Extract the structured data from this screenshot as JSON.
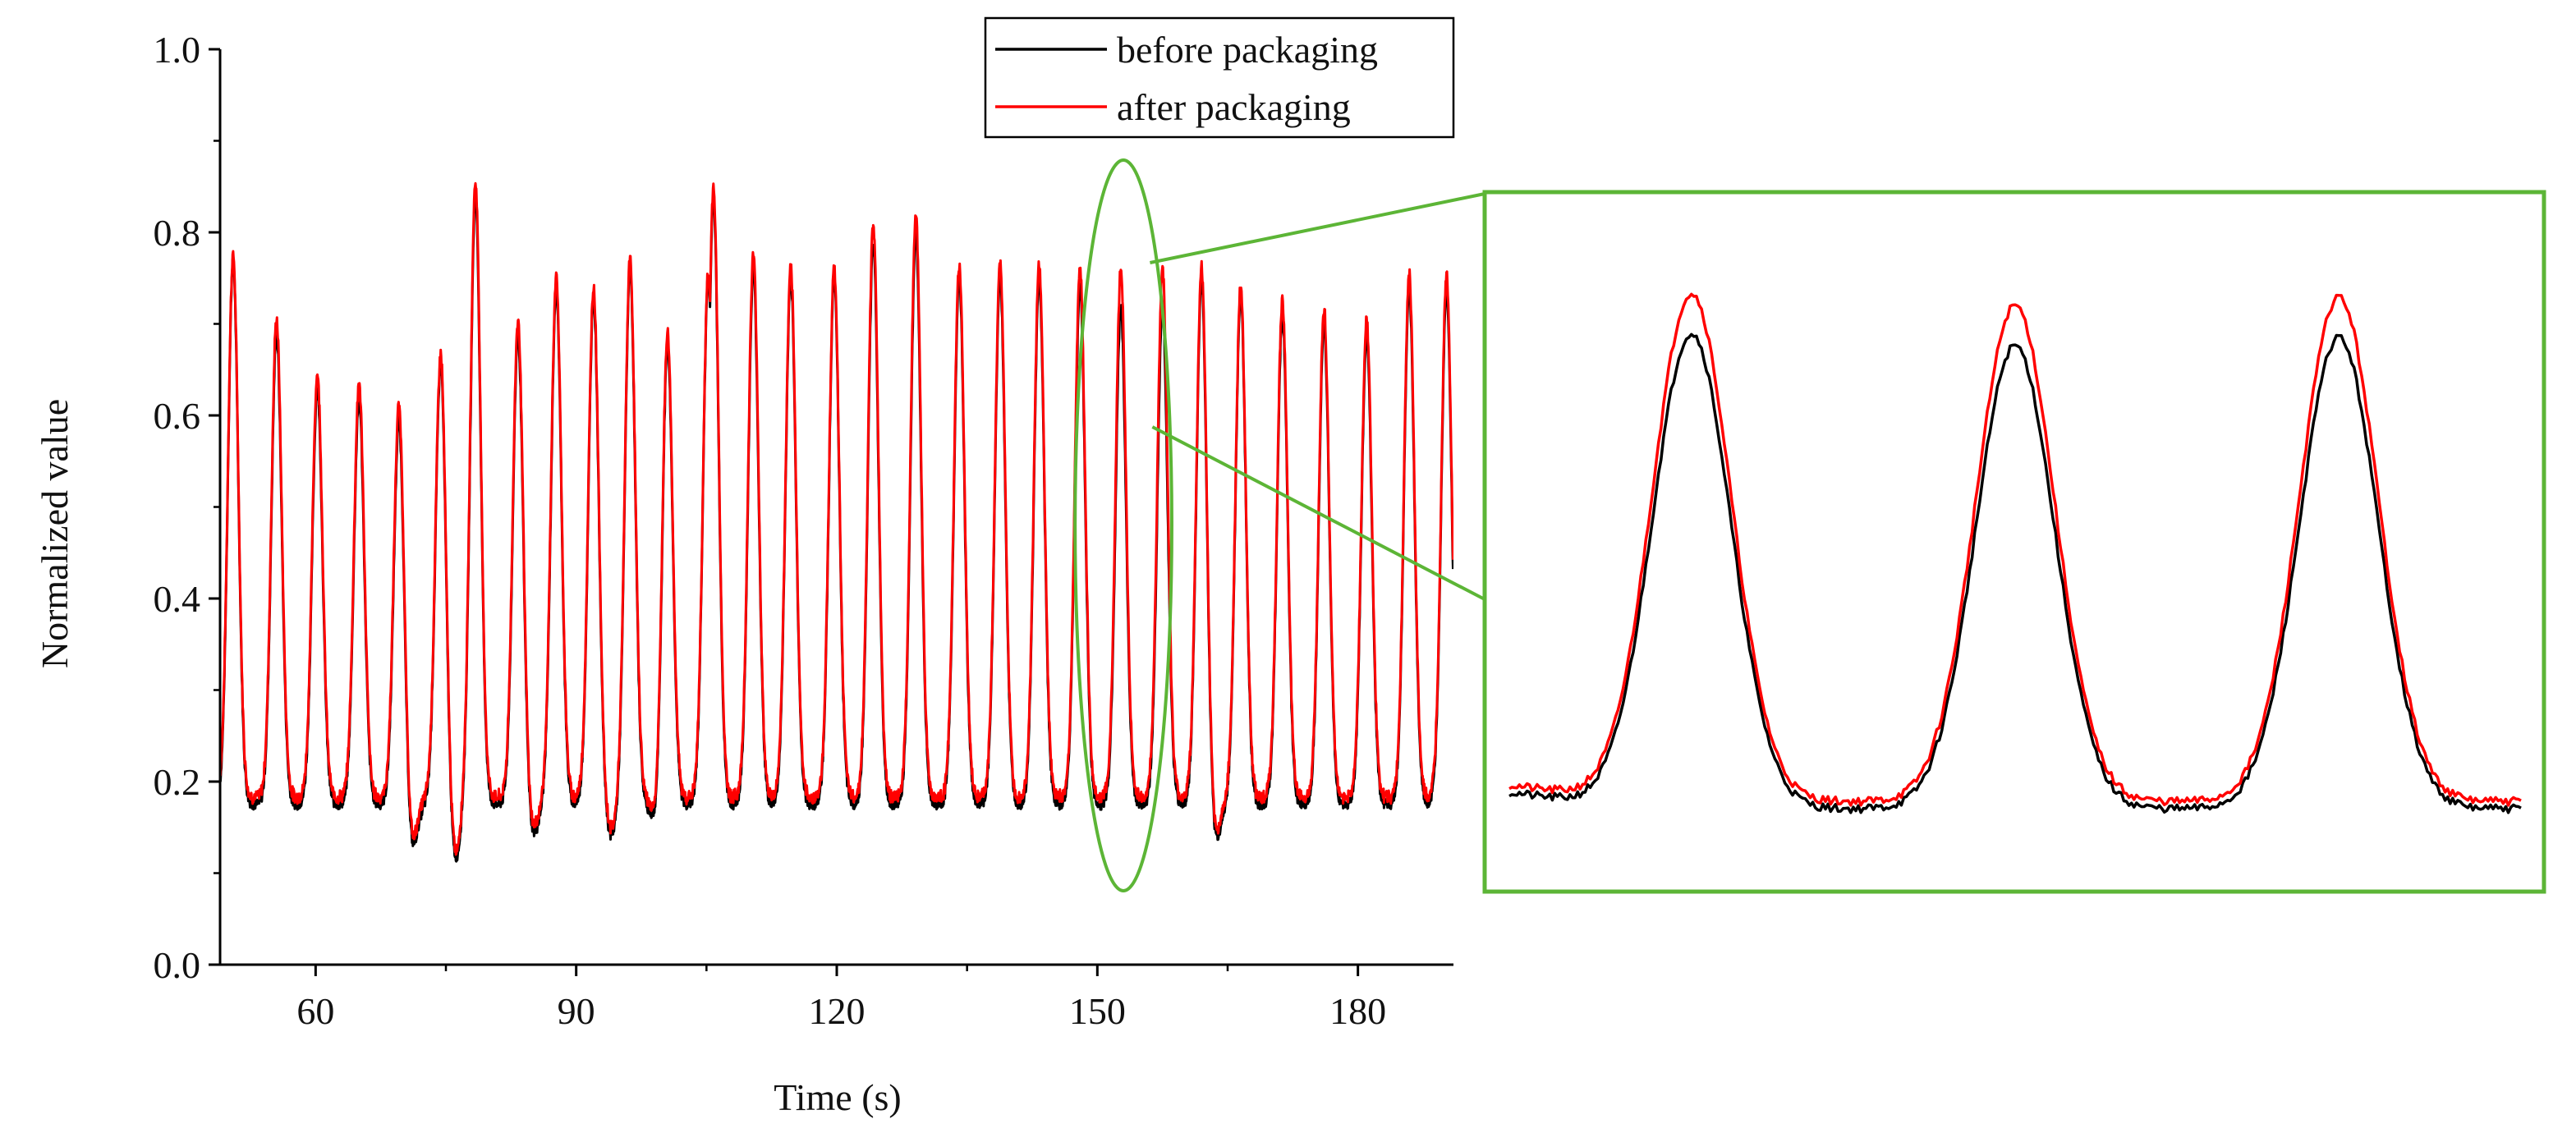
{
  "chart_data": {
    "type": "line",
    "title": "",
    "xlabel": "Time (s)",
    "ylabel": "Normalized value",
    "xlim": [
      49,
      191
    ],
    "ylim": [
      0.0,
      1.0
    ],
    "xticks": [
      60,
      90,
      120,
      150,
      180
    ],
    "xtick_labels": [
      "60",
      "90",
      "120",
      "150",
      "180"
    ],
    "yticks": [
      0.0,
      0.2,
      0.4,
      0.6,
      0.8,
      1.0
    ],
    "ytick_labels": [
      "0.0",
      "0.2",
      "0.4",
      "0.6",
      "0.8",
      "1.0"
    ],
    "grid": false,
    "legend_position": "top-center",
    "baseline": 0.175,
    "peak_width_s": 2.0,
    "peaks": [
      {
        "t": 50.5,
        "before": 0.77,
        "after": 0.775
      },
      {
        "t": 55.5,
        "before": 0.69,
        "after": 0.705
      },
      {
        "t": 60.2,
        "before": 0.63,
        "after": 0.645
      },
      {
        "t": 65.0,
        "before": 0.62,
        "after": 0.635
      },
      {
        "t": 69.6,
        "before": 0.6,
        "after": 0.615
      },
      {
        "t": 74.4,
        "before": 0.66,
        "after": 0.67
      },
      {
        "t": 78.4,
        "before": 0.84,
        "after": 0.855
      },
      {
        "t": 83.3,
        "before": 0.69,
        "after": 0.705
      },
      {
        "t": 87.7,
        "before": 0.74,
        "after": 0.75
      },
      {
        "t": 92.0,
        "before": 0.73,
        "after": 0.74
      },
      {
        "t": 96.2,
        "before": 0.76,
        "after": 0.77
      },
      {
        "t": 100.5,
        "before": 0.69,
        "after": 0.7
      },
      {
        "t": 105.2,
        "before": 0.75,
        "after": 0.755
      },
      {
        "t": 105.8,
        "before": 0.84,
        "after": 0.85
      },
      {
        "t": 110.4,
        "before": 0.76,
        "after": 0.775
      },
      {
        "t": 114.7,
        "before": 0.75,
        "after": 0.76
      },
      {
        "t": 119.7,
        "before": 0.75,
        "after": 0.76
      },
      {
        "t": 124.2,
        "before": 0.79,
        "after": 0.81
      },
      {
        "t": 129.1,
        "before": 0.8,
        "after": 0.82
      },
      {
        "t": 134.1,
        "before": 0.75,
        "after": 0.765
      },
      {
        "t": 138.8,
        "before": 0.75,
        "after": 0.765
      },
      {
        "t": 143.3,
        "before": 0.75,
        "after": 0.765
      },
      {
        "t": 148.0,
        "before": 0.74,
        "after": 0.76
      },
      {
        "t": 152.7,
        "before": 0.72,
        "after": 0.76
      },
      {
        "t": 157.5,
        "before": 0.72,
        "after": 0.76
      },
      {
        "t": 162.0,
        "before": 0.75,
        "after": 0.765
      },
      {
        "t": 166.5,
        "before": 0.73,
        "after": 0.74
      },
      {
        "t": 171.3,
        "before": 0.71,
        "after": 0.725
      },
      {
        "t": 176.1,
        "before": 0.7,
        "after": 0.715
      },
      {
        "t": 181.0,
        "before": 0.69,
        "after": 0.705
      },
      {
        "t": 185.9,
        "before": 0.74,
        "after": 0.755
      },
      {
        "t": 190.2,
        "before": 0.74,
        "after": 0.755
      }
    ],
    "dips": [
      {
        "t": 71.0,
        "value": 0.12
      },
      {
        "t": 76.0,
        "value": 0.11
      },
      {
        "t": 85.0,
        "value": 0.14
      },
      {
        "t": 94.0,
        "value": 0.14
      },
      {
        "t": 99.5,
        "value": 0.14
      },
      {
        "t": 163.5,
        "value": 0.13
      }
    ],
    "series": [
      {
        "name": "before packaging",
        "color": "#000000"
      },
      {
        "name": "after packaging",
        "color": "#ff0000"
      }
    ],
    "annotations": {
      "highlight_color": "#5cb536",
      "highlight_time_range": [
        148,
        158
      ],
      "inset": {
        "description": "zoom of three peaks",
        "peaks": [
          {
            "before": 0.73,
            "after": 0.775
          },
          {
            "before": 0.715,
            "after": 0.76
          },
          {
            "before": 0.725,
            "after": 0.77
          }
        ],
        "baseline_before": 0.15,
        "baseline_after": 0.155
      }
    }
  }
}
